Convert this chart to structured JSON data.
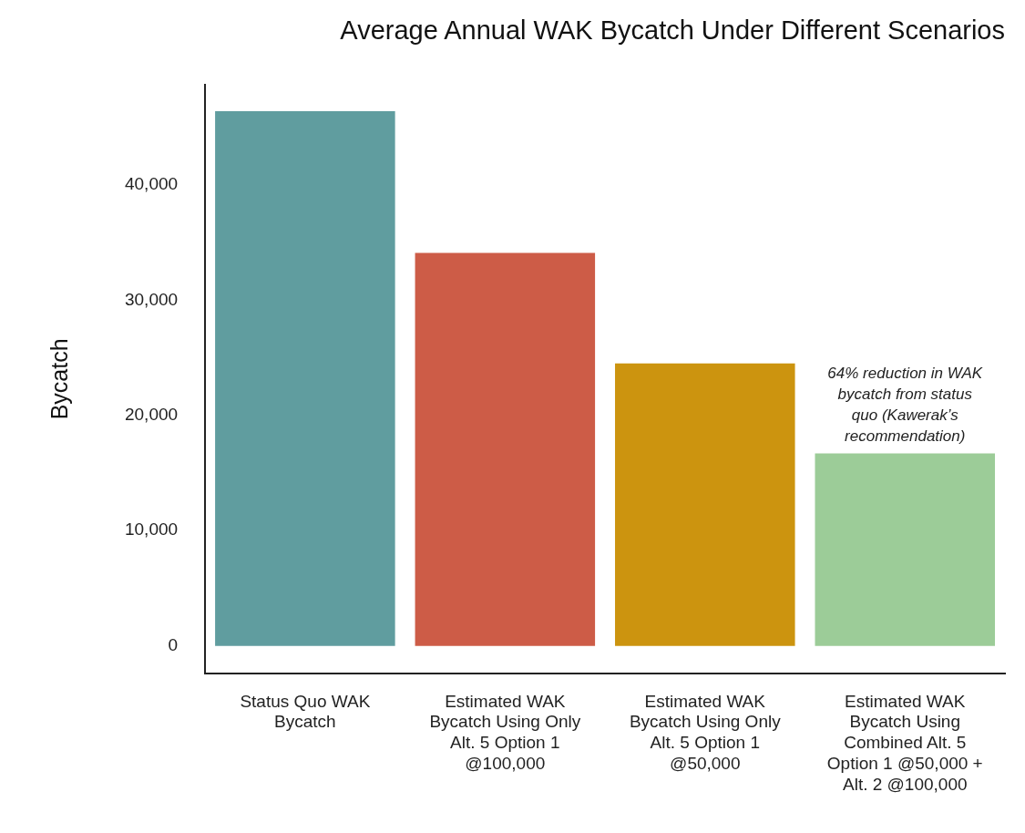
{
  "chart_data": {
    "type": "bar",
    "title": "Average Annual WAK Bycatch Under Different Scenarios",
    "ylabel": "Bycatch",
    "categories": [
      "Status Quo WAK Bycatch",
      "Estimated WAK Bycatch Using Only Alt. 5 Option 1 @100,000",
      "Estimated WAK Bycatch Using Only Alt. 5 Option 1 @50,000",
      "Estimated WAK Bycatch Using Combined Alt. 5 Option 1 @50,000 + Alt. 2 @100,000"
    ],
    "values": [
      46400,
      34100,
      24500,
      16700
    ],
    "colors": [
      "#609d9f",
      "#cd5c47",
      "#cc940f",
      "#9ccc98"
    ],
    "ylim": [
      -2400,
      48700
    ],
    "yticks": [
      0,
      {
        "value": 10000,
        "label": "10,000"
      },
      {
        "value": 20000,
        "label": "20,000"
      },
      {
        "value": 30000,
        "label": "30,000"
      },
      {
        "value": 40000,
        "label": "40,000"
      }
    ],
    "grid": false,
    "legend": false,
    "annotations": [
      {
        "text": "64% reduction in WAK bycatch from status quo (Kawerak’s recommendation)",
        "x": "Estimated WAK Bycatch Using Combined Alt. 5 Option 1 @50,000 + Alt. 2 @100,000",
        "y": 16700
      }
    ]
  }
}
